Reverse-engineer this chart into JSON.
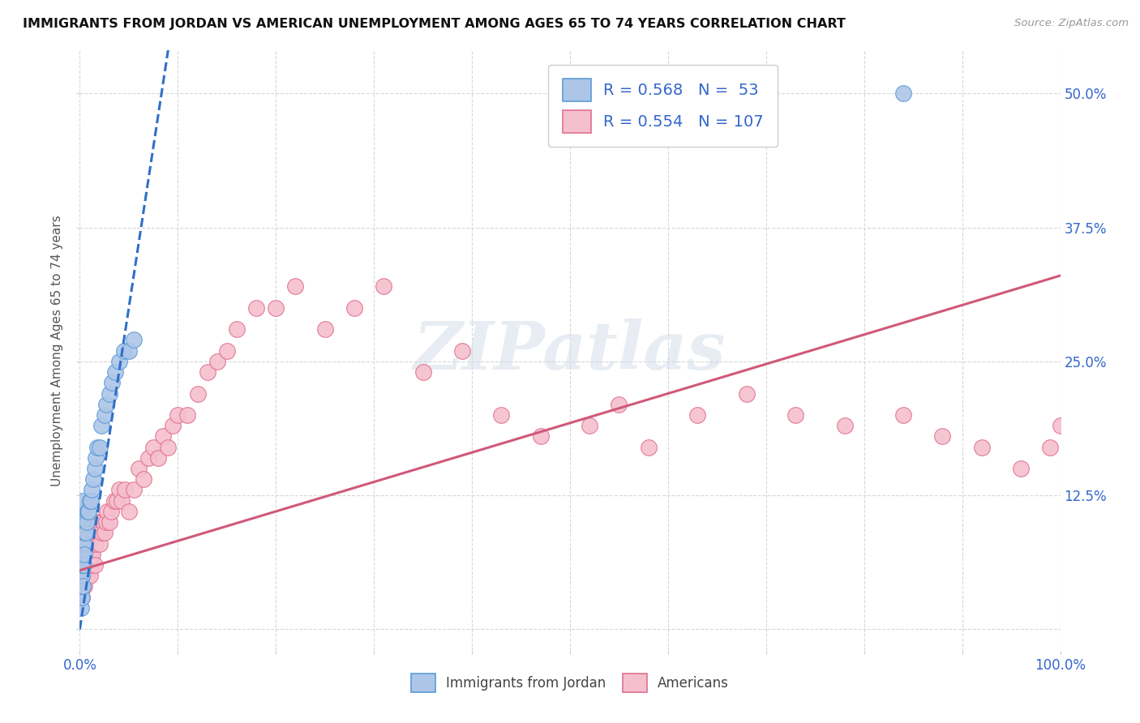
{
  "title": "IMMIGRANTS FROM JORDAN VS AMERICAN UNEMPLOYMENT AMONG AGES 65 TO 74 YEARS CORRELATION CHART",
  "source_text": "Source: ZipAtlas.com",
  "ylabel": "Unemployment Among Ages 65 to 74 years",
  "xlim": [
    0.0,
    1.0
  ],
  "ylim": [
    -0.02,
    0.54
  ],
  "xticks": [
    0.0,
    0.1,
    0.2,
    0.3,
    0.4,
    0.5,
    0.6,
    0.7,
    0.8,
    0.9,
    1.0
  ],
  "xticklabels": [
    "0.0%",
    "",
    "",
    "",
    "",
    "",
    "",
    "",
    "",
    "",
    "100.0%"
  ],
  "ytick_positions": [
    0.0,
    0.125,
    0.25,
    0.375,
    0.5
  ],
  "ytick_labels": [
    "",
    "12.5%",
    "25.0%",
    "37.5%",
    "50.0%"
  ],
  "watermark_text": "ZIPatlas",
  "legend_jordan_r": "0.568",
  "legend_jordan_n": "53",
  "legend_americans_r": "0.554",
  "legend_americans_n": "107",
  "jordan_color": "#adc6e8",
  "jordan_edge_color": "#5b9bd5",
  "american_color": "#f5bfce",
  "american_edge_color": "#e07090",
  "jordan_line_color": "#3070c8",
  "american_line_color": "#d05878",
  "background_color": "#ffffff",
  "grid_color": "#d8d8d8",
  "jordan_scatter_x": [
    0.001,
    0.001,
    0.001,
    0.001,
    0.001,
    0.001,
    0.001,
    0.001,
    0.001,
    0.002,
    0.002,
    0.002,
    0.002,
    0.002,
    0.002,
    0.002,
    0.002,
    0.002,
    0.002,
    0.002,
    0.003,
    0.003,
    0.003,
    0.003,
    0.003,
    0.004,
    0.004,
    0.004,
    0.005,
    0.005,
    0.006,
    0.007,
    0.008,
    0.009,
    0.01,
    0.011,
    0.012,
    0.014,
    0.015,
    0.016,
    0.018,
    0.02,
    0.022,
    0.025,
    0.027,
    0.03,
    0.033,
    0.036,
    0.04,
    0.045,
    0.05,
    0.055,
    0.84
  ],
  "jordan_scatter_y": [
    0.02,
    0.03,
    0.04,
    0.04,
    0.05,
    0.05,
    0.06,
    0.06,
    0.07,
    0.03,
    0.04,
    0.04,
    0.05,
    0.05,
    0.06,
    0.07,
    0.08,
    0.09,
    0.1,
    0.11,
    0.04,
    0.06,
    0.08,
    0.1,
    0.12,
    0.06,
    0.08,
    0.1,
    0.07,
    0.09,
    0.09,
    0.1,
    0.11,
    0.11,
    0.12,
    0.12,
    0.13,
    0.14,
    0.15,
    0.16,
    0.17,
    0.17,
    0.19,
    0.2,
    0.21,
    0.22,
    0.23,
    0.24,
    0.25,
    0.26,
    0.26,
    0.27,
    0.5
  ],
  "american_scatter_x": [
    0.001,
    0.001,
    0.001,
    0.001,
    0.001,
    0.001,
    0.001,
    0.002,
    0.002,
    0.002,
    0.002,
    0.002,
    0.002,
    0.002,
    0.003,
    0.003,
    0.003,
    0.003,
    0.003,
    0.004,
    0.004,
    0.004,
    0.004,
    0.005,
    0.005,
    0.005,
    0.005,
    0.006,
    0.006,
    0.006,
    0.007,
    0.007,
    0.007,
    0.008,
    0.008,
    0.008,
    0.009,
    0.009,
    0.01,
    0.01,
    0.01,
    0.011,
    0.011,
    0.012,
    0.012,
    0.013,
    0.014,
    0.015,
    0.015,
    0.016,
    0.017,
    0.018,
    0.019,
    0.02,
    0.021,
    0.022,
    0.024,
    0.025,
    0.027,
    0.028,
    0.03,
    0.032,
    0.035,
    0.038,
    0.04,
    0.043,
    0.046,
    0.05,
    0.055,
    0.06,
    0.065,
    0.07,
    0.075,
    0.08,
    0.085,
    0.09,
    0.095,
    0.1,
    0.11,
    0.12,
    0.13,
    0.14,
    0.15,
    0.16,
    0.18,
    0.2,
    0.22,
    0.25,
    0.28,
    0.31,
    0.35,
    0.39,
    0.43,
    0.47,
    0.52,
    0.58,
    0.63,
    0.68,
    0.73,
    0.78,
    0.84,
    0.88,
    0.92,
    0.96,
    0.99,
    1.0,
    0.55
  ],
  "american_scatter_y": [
    0.03,
    0.04,
    0.04,
    0.05,
    0.05,
    0.06,
    0.07,
    0.03,
    0.04,
    0.05,
    0.06,
    0.07,
    0.08,
    0.09,
    0.04,
    0.05,
    0.06,
    0.07,
    0.08,
    0.04,
    0.05,
    0.06,
    0.07,
    0.04,
    0.05,
    0.06,
    0.07,
    0.05,
    0.06,
    0.07,
    0.05,
    0.06,
    0.08,
    0.05,
    0.06,
    0.08,
    0.06,
    0.07,
    0.05,
    0.07,
    0.09,
    0.06,
    0.08,
    0.07,
    0.09,
    0.07,
    0.08,
    0.06,
    0.09,
    0.08,
    0.09,
    0.1,
    0.09,
    0.08,
    0.1,
    0.09,
    0.1,
    0.09,
    0.1,
    0.11,
    0.1,
    0.11,
    0.12,
    0.12,
    0.13,
    0.12,
    0.13,
    0.11,
    0.13,
    0.15,
    0.14,
    0.16,
    0.17,
    0.16,
    0.18,
    0.17,
    0.19,
    0.2,
    0.2,
    0.22,
    0.24,
    0.25,
    0.26,
    0.28,
    0.3,
    0.3,
    0.32,
    0.28,
    0.3,
    0.32,
    0.24,
    0.26,
    0.2,
    0.18,
    0.19,
    0.17,
    0.2,
    0.22,
    0.2,
    0.19,
    0.2,
    0.18,
    0.17,
    0.15,
    0.17,
    0.19,
    0.21
  ],
  "jordan_trendline_x": [
    0.0,
    0.055
  ],
  "jordan_trendline_y": [
    0.08,
    0.28
  ],
  "american_trendline_x": [
    0.0,
    1.0
  ],
  "american_trendline_y": [
    0.055,
    0.33
  ]
}
